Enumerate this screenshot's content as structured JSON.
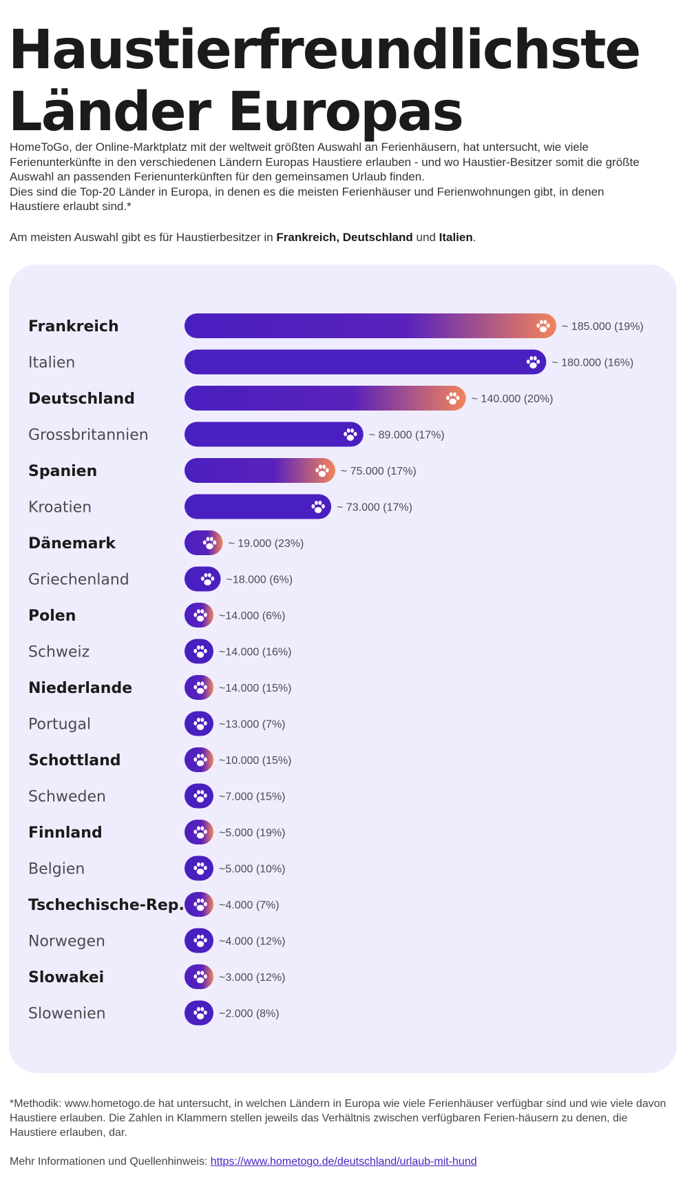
{
  "title": {
    "line1": "Haustierfreundlichste",
    "line2": "Länder Europas"
  },
  "intro": {
    "p1": "HomeToGo, der Online-Marktplatz mit der weltweit größten Auswahl an Ferienhäusern, hat untersucht, wie viele Ferienunterkünfte in den verschiedenen Ländern Europas Haustiere erlauben - und wo Haustier-Besitzer somit die größte Auswahl an passenden Ferienunterkünften für den gemeinsamen Urlaub finden.",
    "p2": "Dies sind die Top-20 Länder in Europa, in denen es die meisten Ferienhäuser und Ferienwohnungen gibt, in denen Haustiere erlaubt sind.*"
  },
  "highlight": {
    "prefix": "Am meisten Auswahl gibt es für Haustierbesitzer in ",
    "c1": "Frankreich,",
    "c2": "Deutschland",
    "mid": " und ",
    "c3": "Italien",
    "suffix": "."
  },
  "colors": {
    "bar": "#4a1fc0",
    "gradient_end": "#f2845a",
    "panel": "#efedfd",
    "paw": "#ffffff"
  },
  "icon": "paw-icon",
  "chart_data": {
    "type": "bar",
    "orientation": "horizontal",
    "categories": [
      "Frankreich",
      "Italien",
      "Deutschland",
      "Grossbritannien",
      "Spanien",
      "Kroatien",
      "Dänemark",
      "Griechenland",
      "Polen",
      "Schweiz",
      "Niederlande",
      "Portugal",
      "Schottland",
      "Schweden",
      "Finnland",
      "Belgien",
      "Tschechische-Rep.",
      "Norwegen",
      "Slowakei",
      "Slowenien"
    ],
    "values": [
      185000,
      180000,
      140000,
      89000,
      75000,
      73000,
      19000,
      18000,
      14000,
      14000,
      14000,
      13000,
      10000,
      7000,
      5000,
      5000,
      4000,
      4000,
      3000,
      2000
    ],
    "data_labels": [
      "~ 185.000 (19%)",
      "~ 180.000 (16%)",
      "~ 140.000 (20%)",
      "~ 89.000 (17%)",
      "~ 75.000 (17%)",
      "~ 73.000 (17%)",
      "~ 19.000 (23%)",
      "~18.000 (6%)",
      "~14.000 (6%)",
      "~14.000 (16%)",
      "~14.000 (15%)",
      "~13.000 (7%)",
      "~10.000 (15%)",
      "~7.000 (15%)",
      "~5.000 (19%)",
      "~5.000 (10%)",
      "~4.000 (7%)",
      "~4.000 (12%)",
      "~3.000 (12%)",
      "~2.000 (8%)"
    ],
    "gradient": [
      true,
      false,
      true,
      false,
      true,
      false,
      true,
      false,
      true,
      false,
      true,
      false,
      true,
      false,
      true,
      false,
      true,
      false,
      true,
      false
    ],
    "bold": [
      true,
      false,
      true,
      false,
      true,
      false,
      true,
      false,
      true,
      false,
      true,
      false,
      true,
      false,
      true,
      false,
      true,
      false,
      true,
      false
    ],
    "title": "",
    "xlabel": "",
    "ylabel": "",
    "grid": false,
    "legend": "none"
  },
  "footnote": "*Methodik: www.hometogo.de hat untersucht, in welchen Ländern in Europa wie viele Ferienhäuser verfügbar sind und wie viele davon Haustiere erlauben. Die Zahlen in Klammern stellen jeweils das Verhältnis zwischen verfügbaren Ferien-häusern zu denen, die Haustiere erlauben, dar.",
  "more_info": {
    "label": "Mehr Informationen und Quellenhinweis: ",
    "link": "https://www.hometogo.de/deutschland/urlaub-mit-hund"
  }
}
